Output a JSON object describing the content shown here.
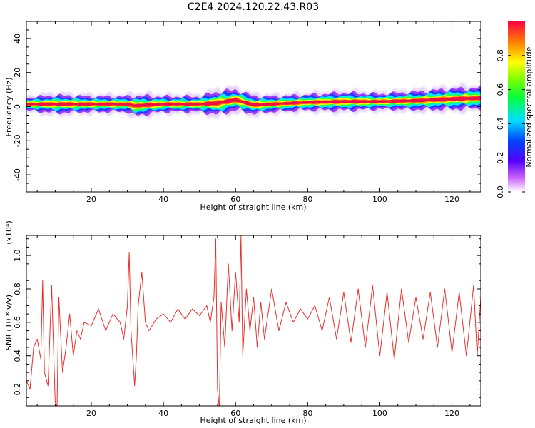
{
  "title": "C2E4.2024.120.22.43.R03",
  "colors": {
    "snr_line": "#e8302c",
    "axis": "#000000"
  },
  "chart_data": [
    {
      "type": "heatmap",
      "xlabel": "Height of straight line (km)",
      "ylabel": "Frequency (Hz)",
      "xlim": [
        2,
        128
      ],
      "ylim": [
        -50,
        50
      ],
      "xticks": [
        20,
        40,
        60,
        80,
        100,
        120
      ],
      "yticks": [
        -40,
        -20,
        0,
        20,
        40
      ],
      "colormap": "rainbow (violet-blue-cyan-green-yellow-orange-red)",
      "colorbar": {
        "label": "Normalized spectral amplitude",
        "range": [
          0.0,
          1.0
        ],
        "ticks": [
          "0.0",
          "0.2",
          "0.4",
          "0.6",
          "0.8"
        ]
      },
      "ridge": {
        "height_km": [
          2,
          10,
          20,
          30,
          32,
          40,
          50,
          55,
          60,
          65,
          70,
          80,
          90,
          100,
          110,
          120,
          128
        ],
        "center_freq_hz": [
          1.5,
          1.5,
          1.5,
          1.5,
          0.5,
          1.5,
          1.5,
          2.0,
          4.0,
          1.0,
          1.5,
          2.5,
          3.0,
          3.0,
          3.5,
          4.5,
          5.0
        ],
        "halfwidth_hz": [
          2.5,
          3.5,
          3.0,
          3.0,
          4.0,
          3.0,
          3.0,
          4.5,
          4.0,
          3.5,
          3.0,
          3.0,
          3.5,
          3.0,
          3.5,
          4.0,
          4.0
        ]
      }
    },
    {
      "type": "line",
      "xlabel": "Height of straight line (km)",
      "ylabel": "SNR (10 * v/v)",
      "y_multiplier": "(x10⁴)",
      "xlim": [
        2,
        128
      ],
      "ylim": [
        0.1,
        1.12
      ],
      "xticks": [
        20,
        40,
        60,
        80,
        100,
        120
      ],
      "yticks": [
        "0.2",
        "0.4",
        "0.6",
        "0.8",
        "1.0"
      ],
      "series": [
        {
          "x": [
            2,
            3,
            4,
            5,
            6,
            6.5,
            7,
            8,
            9,
            10,
            10.5,
            11,
            12,
            13,
            14,
            15,
            16,
            17,
            18,
            20,
            22,
            24,
            26,
            28,
            29,
            30,
            30.5,
            31,
            32,
            32.5,
            33,
            34,
            35,
            36,
            38,
            40,
            42,
            44,
            46,
            48,
            50,
            52,
            53,
            54,
            54.5,
            55,
            55.5,
            56,
            57,
            58,
            59,
            60,
            61,
            61.5,
            62,
            63,
            64,
            65,
            66,
            67,
            68,
            70,
            72,
            74,
            76,
            78,
            80,
            82,
            84,
            86,
            88,
            90,
            92,
            94,
            96,
            98,
            100,
            102,
            104,
            106,
            108,
            110,
            112,
            114,
            116,
            118,
            120,
            122,
            124,
            126,
            127,
            128
          ],
          "values": [
            0.25,
            0.2,
            0.45,
            0.5,
            0.38,
            0.85,
            0.3,
            0.22,
            0.82,
            0.12,
            0.1,
            0.75,
            0.3,
            0.45,
            0.65,
            0.4,
            0.55,
            0.5,
            0.6,
            0.58,
            0.68,
            0.55,
            0.65,
            0.6,
            0.5,
            0.7,
            1.02,
            0.55,
            0.22,
            0.4,
            0.7,
            0.9,
            0.6,
            0.55,
            0.62,
            0.65,
            0.6,
            0.68,
            0.62,
            0.68,
            0.64,
            0.7,
            0.6,
            0.75,
            1.1,
            0.2,
            0.08,
            0.72,
            0.45,
            0.95,
            0.55,
            0.9,
            0.6,
            1.12,
            0.4,
            0.8,
            0.55,
            0.75,
            0.45,
            0.72,
            0.5,
            0.8,
            0.55,
            0.72,
            0.6,
            0.68,
            0.62,
            0.7,
            0.55,
            0.75,
            0.5,
            0.78,
            0.48,
            0.8,
            0.45,
            0.82,
            0.4,
            0.78,
            0.38,
            0.8,
            0.48,
            0.75,
            0.5,
            0.78,
            0.45,
            0.8,
            0.42,
            0.78,
            0.4,
            0.82,
            0.4,
            0.75
          ]
        }
      ]
    }
  ]
}
